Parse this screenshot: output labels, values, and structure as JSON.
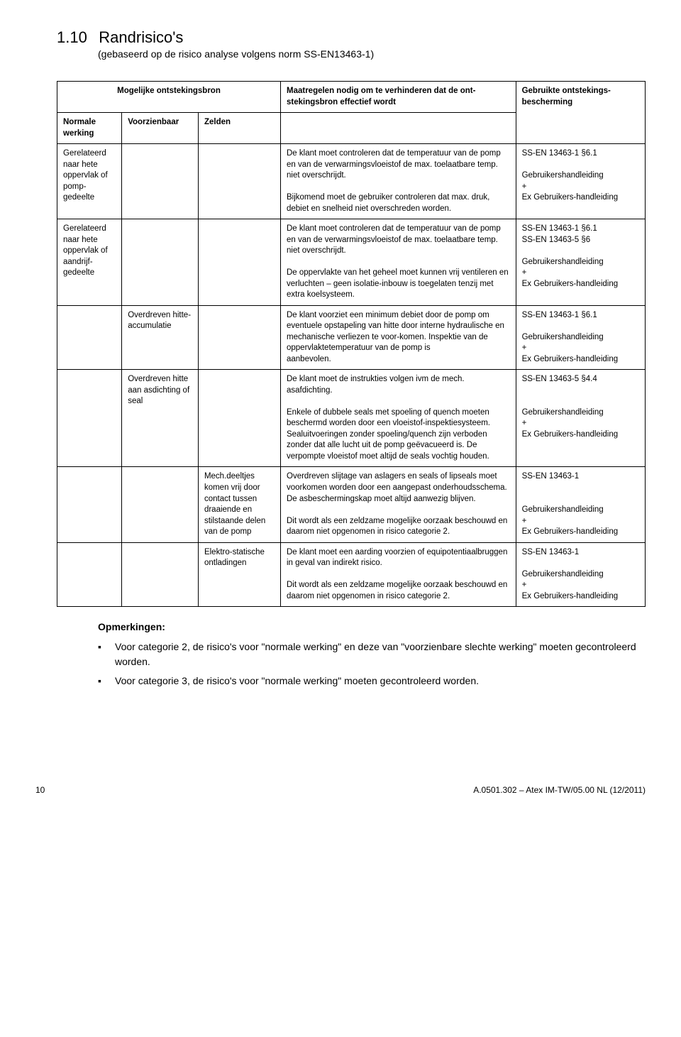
{
  "section": {
    "number": "1.10",
    "title": "Randrisico's",
    "subtitle": "(gebaseerd op de risico analyse volgens norm SS-EN13463-1)"
  },
  "table": {
    "header_source": "Mogelijke ontstekingsbron",
    "header_measures": "Maatregelen nodig om te verhinderen dat de ont-stekingsbron effectief wordt",
    "header_protection": "Gebruikte ontstekings-bescherming",
    "sub_normal": "Normale werking",
    "sub_predictable": "Voorzienbaar",
    "sub_rare": "Zelden",
    "rows": [
      {
        "a": "Gerelateerd naar hete oppervlak of pomp-gedeelte",
        "b": "",
        "c": "",
        "d": "De klant moet controleren dat de temperatuur van de pomp en van de verwarmingsvloeistof de max. toelaatbare temp. niet overschrijdt.\n\nBijkomend moet de gebruiker controleren dat max. druk, debiet en snelheid niet overschreden worden.",
        "e": "SS-EN 13463-1 §6.1\n\nGebruikershandleiding\n+\nEx Gebruikers-handleiding"
      },
      {
        "a": "Gerelateerd naar hete oppervlak of aandrijf-gedeelte",
        "b": "",
        "c": "",
        "d": "De klant moet controleren dat de temperatuur van de pomp en van de verwarmingsvloeistof de max. toelaatbare temp. niet overschrijdt.\n\nDe oppervlakte van het geheel moet kunnen vrij ventileren en verluchten – geen isolatie-inbouw is toegelaten tenzij met extra koelsysteem.",
        "e": "SS-EN 13463-1 §6.1\nSS-EN 13463-5 §6\n\nGebruikershandleiding\n+\nEx Gebruikers-handleiding"
      },
      {
        "a": "",
        "b": "Overdreven hitte-accumulatie",
        "c": "",
        "d": "De klant voorziet een minimum debiet door de pomp om eventuele opstapeling van hitte door interne hydraulische en mechanische verliezen te voor-komen. Inspektie van de oppervlaktetemperatuur van de pomp is\naanbevolen.",
        "e": "SS-EN 13463-1 §6.1\n\nGebruikershandleiding\n+\nEx Gebruikers-handleiding"
      },
      {
        "a": "",
        "b": "Overdreven hitte aan asdichting of seal",
        "c": "",
        "d": "De klant moet de instrukties volgen ivm de mech. asafdichting.\n\nEnkele of dubbele seals met spoeling of quench moeten beschermd worden door een vloeistof-inspektiesysteem. Sealuitvoeringen zonder spoeling/quench zijn verboden zonder dat alle lucht uit de pomp geëvacueerd is. De verpompte vloeistof moet altijd de seals vochtig houden.",
        "e": "SS-EN 13463-5 §4.4\n\n\nGebruikershandleiding\n+\nEx Gebruikers-handleiding"
      },
      {
        "a": "",
        "b": "",
        "c": "Mech.deeltjes komen vrij door contact tussen draaiende en stilstaande delen van de pomp",
        "d": "Overdreven slijtage van aslagers en seals of lipseals moet voorkomen worden door een aangepast onderhoudsschema. De asbeschermingskap moet altijd aanwezig blijven.\n\nDit wordt als een zeldzame mogelijke oorzaak beschouwd en daarom niet opgenomen in risico categorie 2.",
        "e": "SS-EN 13463-1\n\n\nGebruikershandleiding\n+\nEx Gebruikers-handleiding"
      },
      {
        "a": "",
        "b": "",
        "c": "Elektro-statische ontladingen",
        "d": "De klant moet een aarding voorzien of equipotentiaalbruggen in geval van indirekt risico.\n\nDit wordt als een zeldzame mogelijke oorzaak beschouwd en daarom niet opgenomen in risico categorie 2.",
        "e": "SS-EN 13463-1\n\nGebruikershandleiding\n+\nEx Gebruikers-handleiding"
      }
    ]
  },
  "notes": {
    "title": "Opmerkingen:",
    "items": [
      "Voor categorie 2, de risico's voor \"normale werking\" en deze van \"voorzienbare slechte werking\" moeten gecontroleerd worden.",
      "Voor categorie 3, de risico's voor \"normale werking\"  moeten gecontroleerd worden."
    ]
  },
  "footer": {
    "page": "10",
    "doc": "A.0501.302 – Atex IM-TW/05.00 NL (12/2011)"
  }
}
